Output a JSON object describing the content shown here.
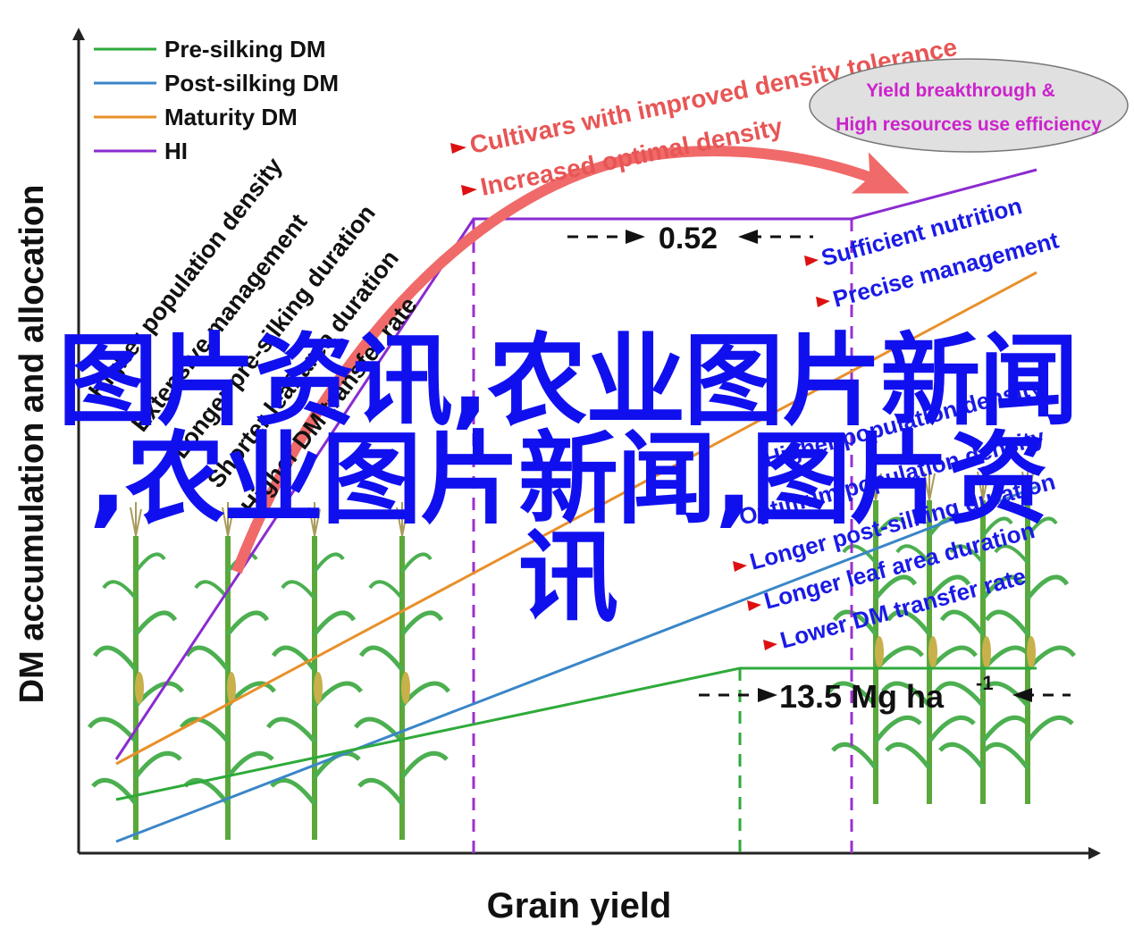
{
  "legend": [
    {
      "label": "Pre-silking DM",
      "color": "#2eaa3a"
    },
    {
      "label": "Post-silking DM",
      "color": "#3a86c8"
    },
    {
      "label": "Maturity DM",
      "color": "#e8902a"
    },
    {
      "label": "HI",
      "color": "#8a2bd0"
    }
  ],
  "axes": {
    "ylabel": "DM accumulation and allocation",
    "xlabel": "Grain yield"
  },
  "left_factors": [
    "Higher population density",
    "Extensive management",
    "Longer pre-silking duration",
    "Shorter leaf area duration",
    "Higher DM transfer rate"
  ],
  "arrow_labels": {
    "tolerance": "Cultivars with improved density tolerance",
    "optimal": "Increased optimal density"
  },
  "ellipse": {
    "line1": "Yield breakthrough &",
    "line2": "High resources use efficiency"
  },
  "values": {
    "hi_gap": "0.52",
    "yield_mg": "13.5 Mg ha",
    "yield_exp": "-1"
  },
  "right_factors": [
    "Sufficient nutrition",
    "Precise management",
    "Higher population density",
    "Optimum population density",
    "Longer post-silking duration",
    "Longer leaf area duration",
    "Lower DM transfer rate"
  ],
  "overlay": {
    "line1": "图片资讯,农业图片新闻",
    "line2": ",农业图片新闻,图片资",
    "line3": "讯"
  },
  "colors": {
    "factor_blue": "#1a1ae6",
    "arrow_red": "#f06a6a",
    "label_red": "#e85555",
    "pointer_red": "#dd1111",
    "ellipse_fill": "#e0e0e0",
    "ellipse_text": "#cc22cc",
    "plant_green": "#4caf50"
  }
}
